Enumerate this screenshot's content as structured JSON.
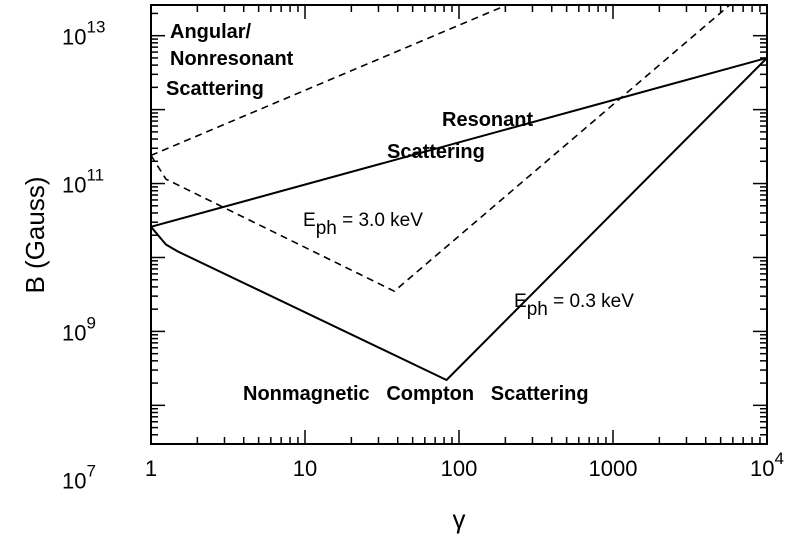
{
  "chart_data": {
    "type": "line",
    "xlabel": "γ",
    "ylabel": "B (Gauss)",
    "xscale": "log",
    "yscale": "log",
    "xlim": [
      1,
      10000
    ],
    "ylim": [
      30000000.0,
      26000000000000.0
    ],
    "grid": false,
    "legend": "none",
    "x_ticks": [
      {
        "value": 1,
        "label": "1"
      },
      {
        "value": 10,
        "label": "10"
      },
      {
        "value": 100,
        "label": "100"
      },
      {
        "value": 1000,
        "label": "1000"
      },
      {
        "value": 10000,
        "base": "10",
        "exp": "4"
      }
    ],
    "y_ticks": [
      {
        "value": 10000000.0,
        "base": "10",
        "exp": "7"
      },
      {
        "value": 1000000000.0,
        "base": "10",
        "exp": "9"
      },
      {
        "value": 100000000000.0,
        "base": "10",
        "exp": "11"
      },
      {
        "value": 10000000000000.0,
        "base": "10",
        "exp": "13"
      }
    ],
    "series": [
      {
        "style": "solid",
        "x": [
          1,
          10000
        ],
        "y": [
          26000000000.0,
          5000000000000.0
        ]
      },
      {
        "style": "solid",
        "x": [
          1,
          1.25,
          1.5,
          83,
          10000
        ],
        "y": [
          26000000000.0,
          15000000000.0,
          12000000000.0,
          220000000.0,
          5000000000000.0
        ]
      },
      {
        "style": "dashed",
        "x": [
          1,
          10000
        ],
        "y": [
          240000000000.0,
          800000000000000.0
        ]
      },
      {
        "style": "dashed",
        "x": [
          1,
          1.25,
          38,
          10000
        ],
        "y": [
          240000000000.0,
          115000000000.0,
          3500000000.0,
          70000000000000.0
        ]
      }
    ],
    "annotations": [
      {
        "id": "angular",
        "lines": [
          "Angular/",
          "Nonresonant",
          "Scattering"
        ]
      },
      {
        "id": "resonant",
        "lines": [
          "Resonant",
          "Scattering"
        ]
      },
      {
        "id": "nonmagnetic",
        "lines": [
          "Nonmagnetic   Compton   Scattering"
        ]
      },
      {
        "id": "eph_3",
        "base": "E",
        "sub": "ph",
        "text": " = 3.0 keV"
      },
      {
        "id": "eph_03",
        "base": "E",
        "sub": "ph",
        "text": " = 0.3 keV"
      }
    ]
  }
}
